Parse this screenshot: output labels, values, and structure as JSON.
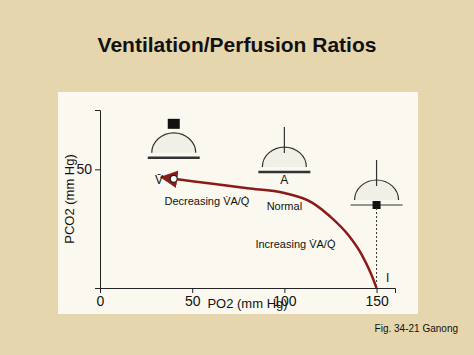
{
  "chart_data": {
    "type": "line",
    "title": "Ventilation/Perfusion Ratios",
    "x_label": "PO2 (mm Hg)",
    "y_label": "PCO2 (mm Hg)",
    "x": [
      40,
      60,
      80,
      100,
      115,
      125,
      135,
      142,
      147,
      150
    ],
    "series": [
      {
        "color": "#8b1a1a",
        "values": [
          46,
          44,
          42,
          40,
          36,
          30,
          22,
          14,
          6,
          0
        ]
      }
    ],
    "xlim": [
      0,
      160
    ],
    "ylim": [
      0,
      75
    ],
    "xticks": [
      0,
      50,
      100,
      150
    ],
    "yticks": [
      50
    ],
    "annotations": [
      {
        "text": "V̄",
        "x": 32,
        "y": 45
      },
      {
        "text": "A",
        "x": 100,
        "y": 45
      },
      {
        "text": "Normal",
        "x": 100,
        "y": 34
      },
      {
        "text": "Decreasing V̇A/Q̇",
        "x": 58,
        "y": 36
      },
      {
        "text": "Increasing V̇A/Q̇",
        "x": 106,
        "y": 18
      },
      {
        "text": "I",
        "x": 156,
        "y": 4
      }
    ],
    "caption": "Fig. 34-21 Ganong"
  }
}
